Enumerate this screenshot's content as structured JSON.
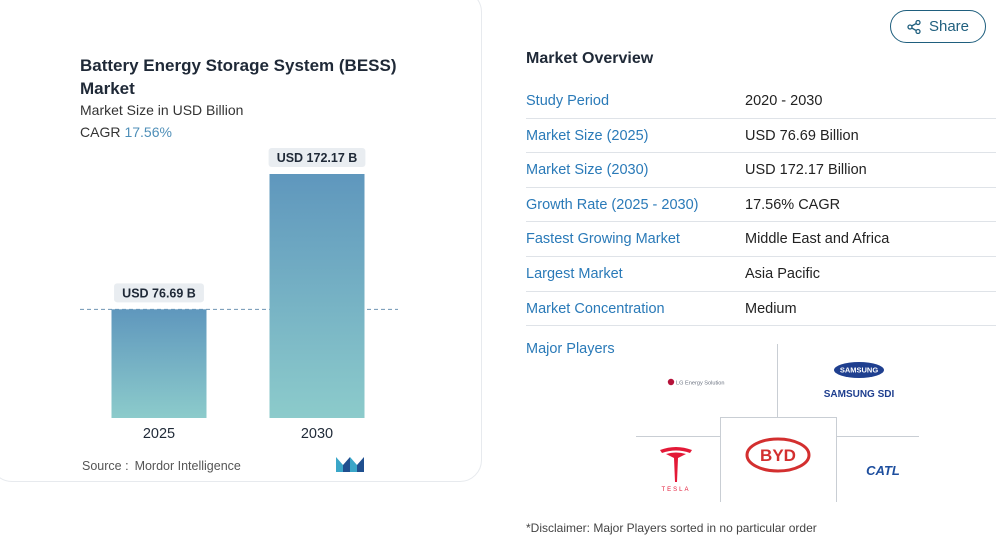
{
  "chart_data": {
    "type": "bar",
    "title": "Battery Energy Storage System (BESS) Market",
    "subtitle": "Market Size in USD Billion",
    "cagr_label": "CAGR",
    "cagr_value": "17.56%",
    "categories": [
      "2025",
      "2030"
    ],
    "values": [
      76.69,
      172.17
    ],
    "value_labels": [
      "USD 76.69 B",
      "USD 172.17 B"
    ],
    "ylim": [
      0,
      190
    ],
    "grid": false,
    "colors": {
      "bar_top": "#5f97bd",
      "bar_bottom": "#8ccbcb",
      "label_bg": "#e9edf1",
      "reference_line": "#6f94b3"
    }
  },
  "source": {
    "label": "Source :",
    "value": "Mordor Intelligence"
  },
  "share": {
    "label": "Share",
    "icon": "share-icon"
  },
  "overview": {
    "title": "Market Overview",
    "rows": [
      {
        "key": "Study Period",
        "value": "2020 - 2030"
      },
      {
        "key": "Market Size (2025)",
        "value": "USD 76.69 Billion"
      },
      {
        "key": "Market Size (2030)",
        "value": "USD 172.17 Billion"
      },
      {
        "key": "Growth Rate (2025 - 2030)",
        "value": "17.56% CAGR"
      },
      {
        "key": "Fastest Growing Market",
        "value": "Middle East and Africa"
      },
      {
        "key": "Largest Market",
        "value": "Asia Pacific"
      },
      {
        "key": "Market Concentration",
        "value": "Medium"
      }
    ]
  },
  "players": {
    "label": "Major Players",
    "logos": [
      "LG Energy Solution",
      "SAMSUNG",
      "SAMSUNG SDI",
      "TESLA",
      "BYD",
      "CATL"
    ]
  },
  "disclaimer": "*Disclaimer: Major Players sorted in no particular order"
}
